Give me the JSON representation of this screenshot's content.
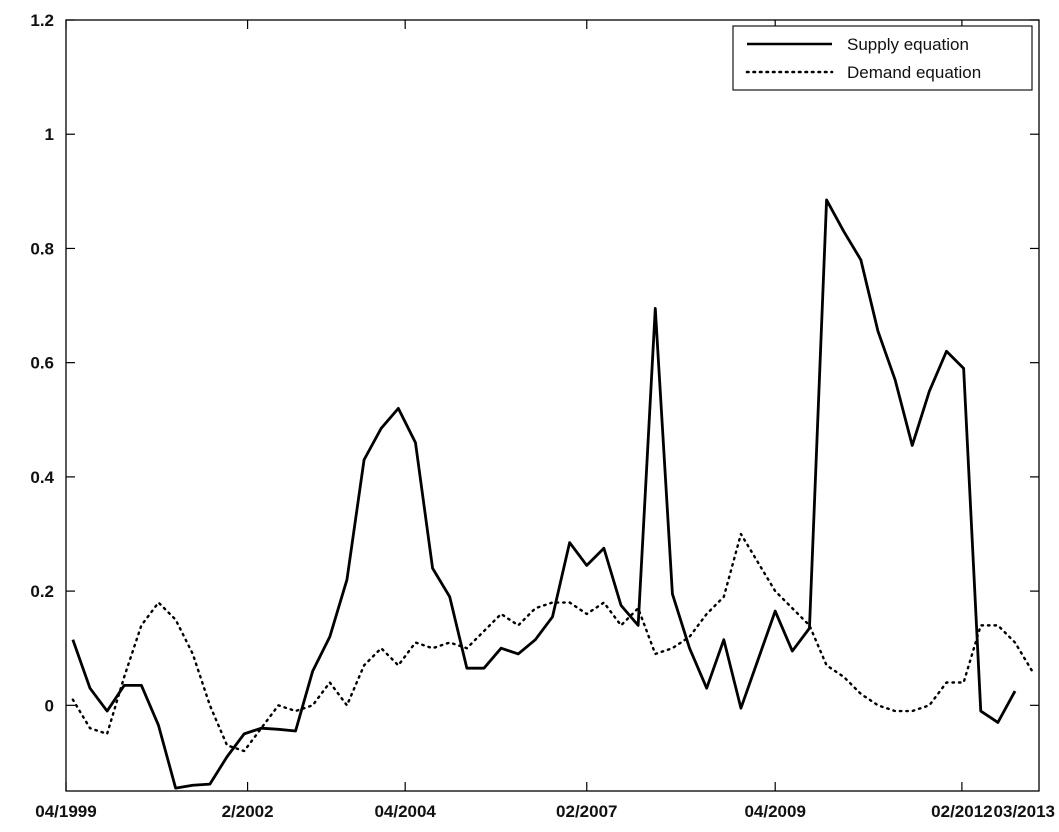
{
  "chart_data": {
    "type": "line",
    "title": "",
    "xlabel": "",
    "ylabel": "",
    "x": [
      0,
      1,
      2,
      3,
      4,
      5,
      6,
      7,
      8,
      9,
      10,
      11,
      12,
      13,
      14,
      15,
      16,
      17,
      18,
      19,
      20,
      21,
      22,
      23,
      24,
      25,
      26,
      27,
      28,
      29,
      30,
      31,
      32,
      33,
      34,
      35,
      36,
      37,
      38,
      39,
      40,
      41,
      42,
      43,
      44,
      45,
      46,
      47,
      48,
      49,
      50,
      51,
      52,
      53,
      54,
      55,
      56
    ],
    "xlim": [
      -0.4,
      56.4
    ],
    "xticks": [
      {
        "x": -0.4,
        "label": "04/1999"
      },
      {
        "x": 10.2,
        "label": "2/2002"
      },
      {
        "x": 19.4,
        "label": "04/2004"
      },
      {
        "x": 30.0,
        "label": "02/2007"
      },
      {
        "x": 41.0,
        "label": "04/2009"
      },
      {
        "x": 51.9,
        "label": "02/2012"
      },
      {
        "x": 60.5,
        "label": "03/2013"
      }
    ],
    "ylim": [
      -0.15,
      1.2
    ],
    "yticks": [
      0,
      0.2,
      0.4,
      0.6,
      0.8,
      1,
      1.2
    ],
    "ytick_labels": [
      "0",
      "0.2",
      "0.4",
      "0.6",
      "0.8",
      "1",
      "1.2"
    ],
    "grid": false,
    "legend_position": "top-right",
    "series": [
      {
        "name": "Supply equation",
        "style": "solid",
        "color": "#000000",
        "values": [
          0.115,
          0.03,
          -0.01,
          0.035,
          0.035,
          -0.035,
          -0.145,
          -0.14,
          -0.138,
          -0.09,
          -0.05,
          -0.04,
          -0.042,
          -0.045,
          0.06,
          0.12,
          0.22,
          0.43,
          0.485,
          0.52,
          0.46,
          0.24,
          0.19,
          0.065,
          0.065,
          0.1,
          0.09,
          0.115,
          0.155,
          0.285,
          0.245,
          0.275,
          0.175,
          0.14,
          0.695,
          0.195,
          0.1,
          0.03,
          0.115,
          -0.005,
          0.08,
          0.165,
          0.095,
          0.135,
          0.885,
          0.83,
          0.78,
          0.655,
          0.57,
          0.455,
          0.55,
          0.62,
          0.59,
          -0.01,
          -0.03,
          0.025,
          null
        ]
      },
      {
        "name": "Demand equation",
        "style": "dotted",
        "color": "#000000",
        "values": [
          0.01,
          -0.04,
          -0.05,
          0.05,
          0.14,
          0.18,
          0.15,
          0.09,
          0.0,
          -0.07,
          -0.08,
          -0.04,
          0.0,
          -0.01,
          0.0,
          0.04,
          0.0,
          0.07,
          0.1,
          0.07,
          0.11,
          0.1,
          0.11,
          0.1,
          0.13,
          0.16,
          0.14,
          0.17,
          0.18,
          0.18,
          0.16,
          0.18,
          0.14,
          0.17,
          0.09,
          0.1,
          0.12,
          0.16,
          0.19,
          0.3,
          0.25,
          0.2,
          0.17,
          0.14,
          0.07,
          0.05,
          0.02,
          0.0,
          -0.01,
          -0.01,
          0.0,
          0.04,
          0.04,
          0.14,
          0.14,
          0.11,
          0.06
        ]
      }
    ]
  }
}
